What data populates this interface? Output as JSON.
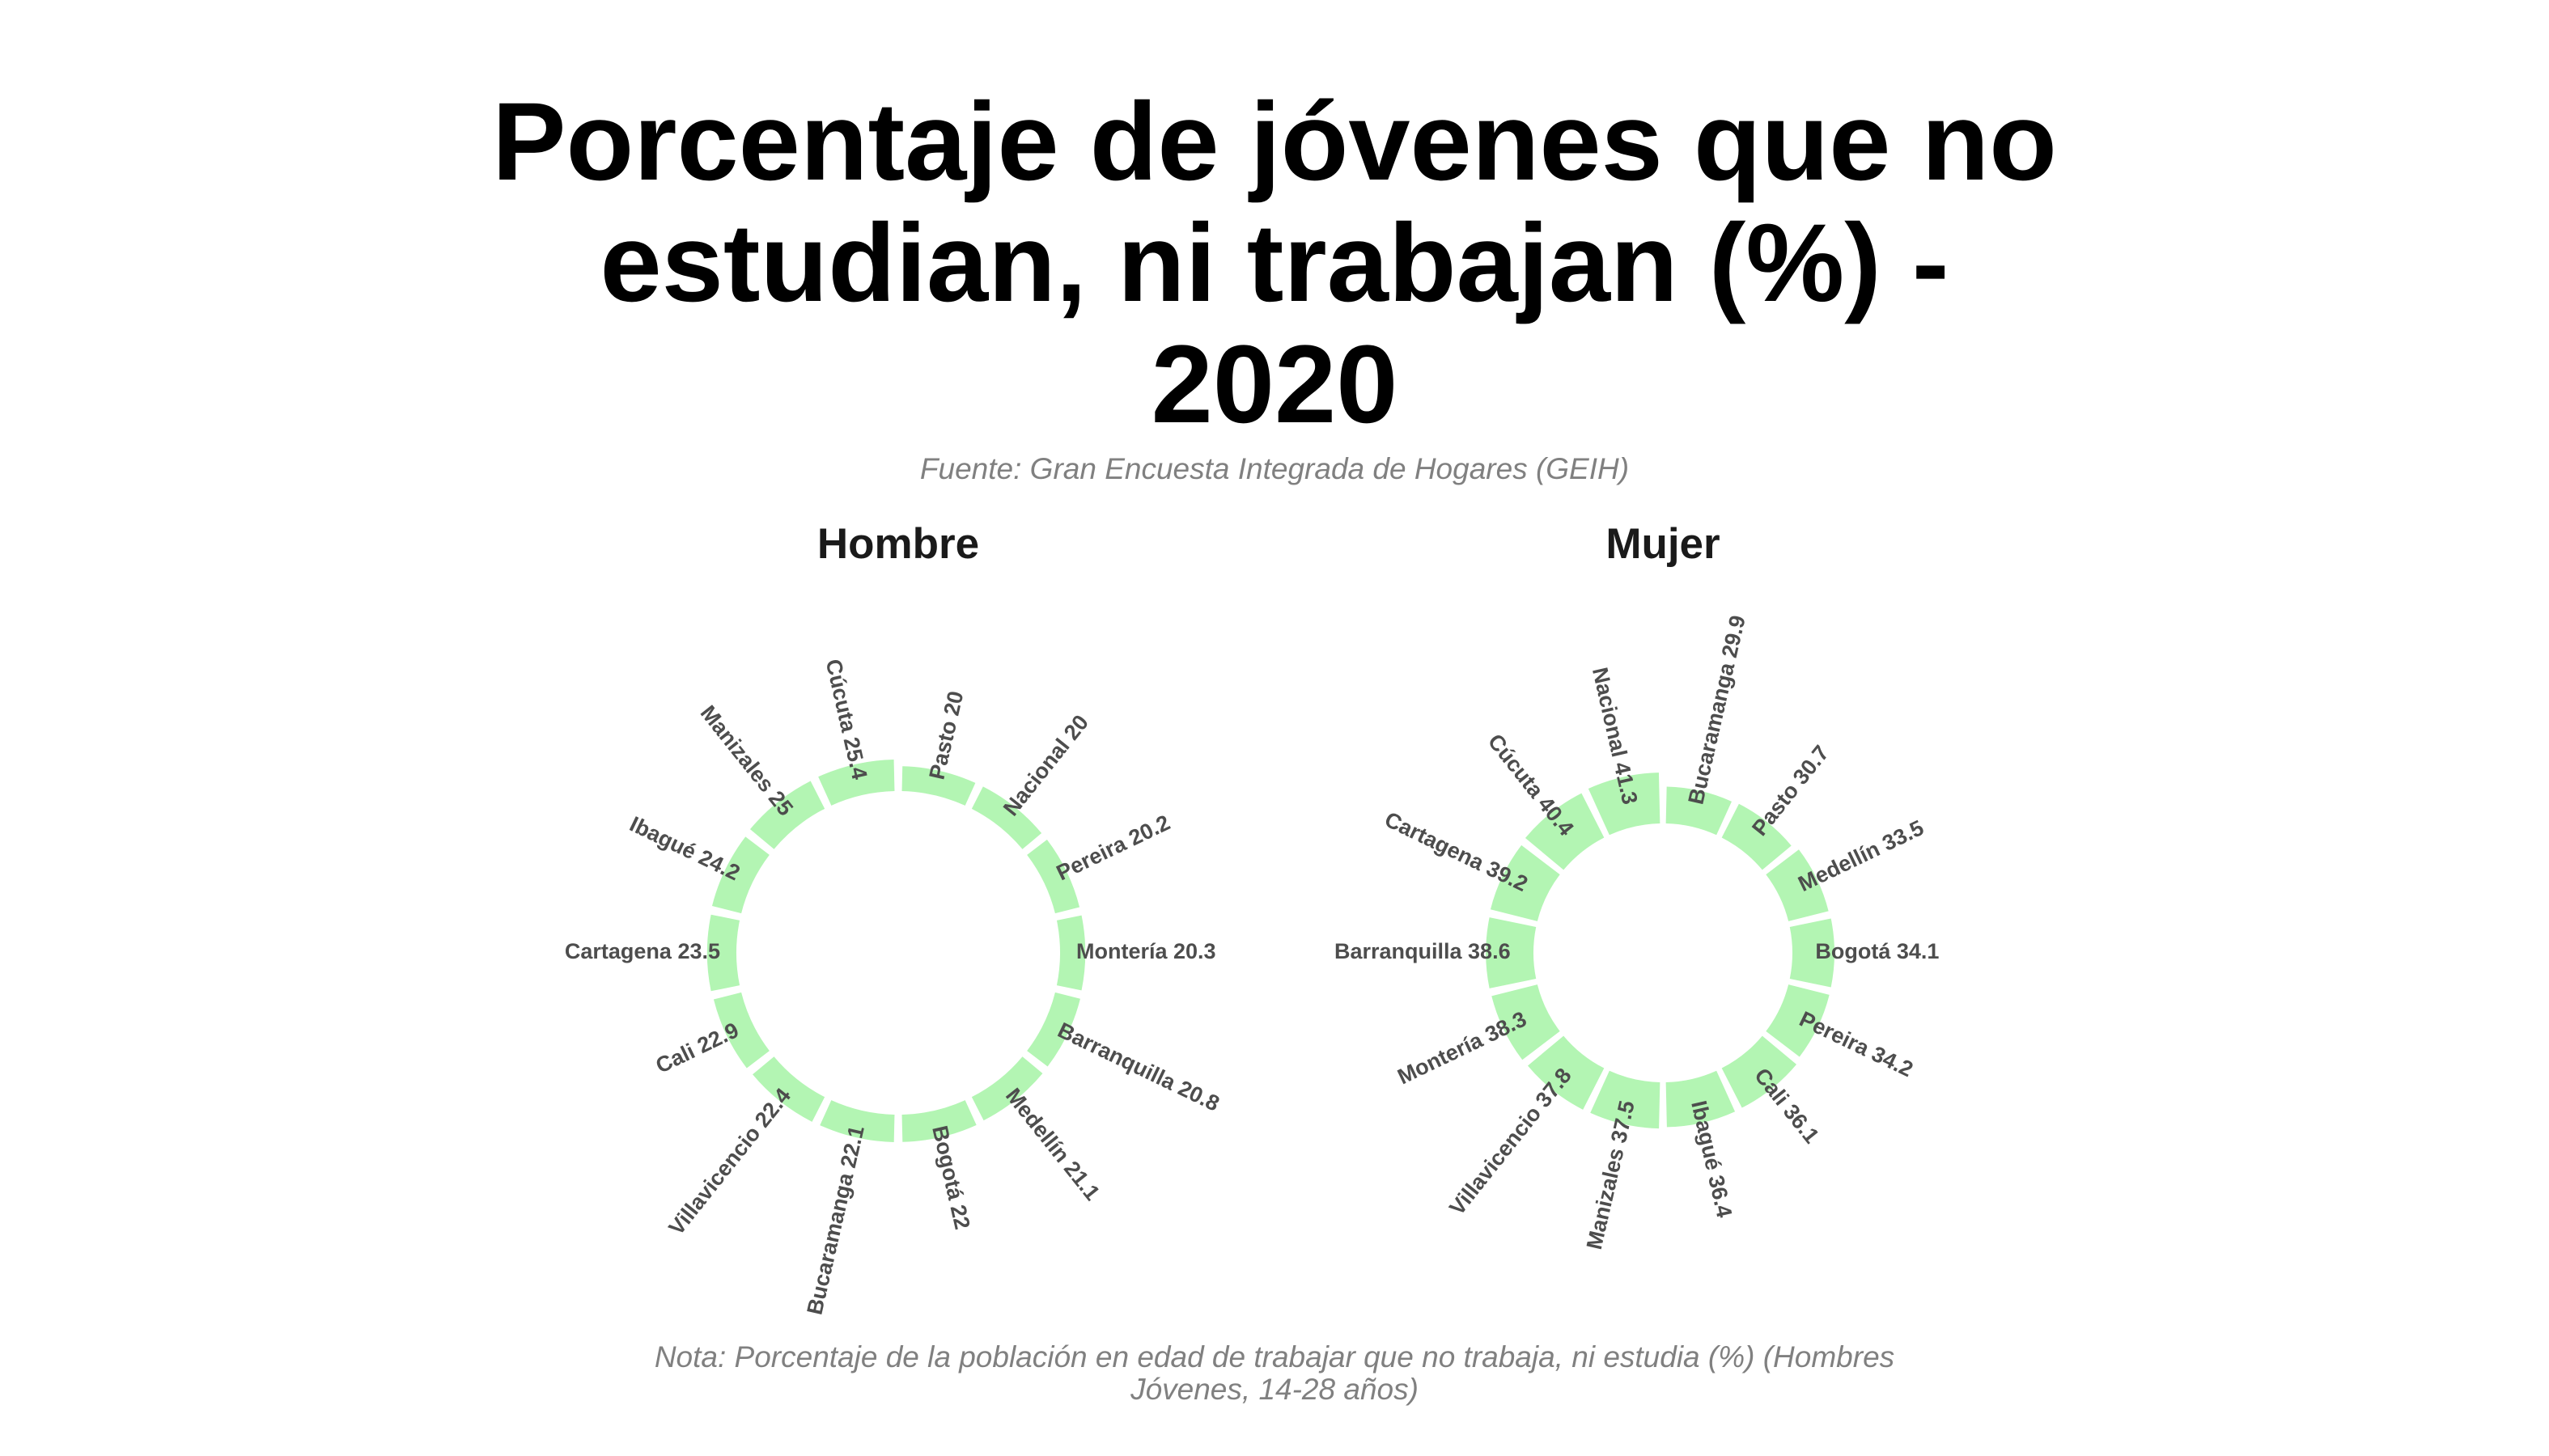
{
  "title_lines": [
    "Porcentaje de jóvenes que no",
    "estudian, ni trabajan (%) -",
    "2020"
  ],
  "subtitle": "Fuente: Gran Encuesta Integrada de Hogares (GEIH)",
  "caption_lines": [
    "Nota: Porcentaje de la población en edad de trabajar que no trabaja, ni estudia (%) (Hombres",
    "Jóvenes, 14-28 años)"
  ],
  "colors": {
    "bar_fill": "#b3f5b3",
    "label": "#4d4d4d"
  },
  "chart_data": [
    {
      "type": "circular-bar",
      "title": "Hombre",
      "categories": [
        "Pasto",
        "Nacional",
        "Pereira",
        "Montería",
        "Barranquilla",
        "Medellín",
        "Bogotá",
        "Bucaramanga",
        "Villavicencio",
        "Cali",
        "Cartagena",
        "Ibagué",
        "Manizales",
        "Cúcuta"
      ],
      "values": [
        20,
        20,
        20.2,
        20.3,
        20.8,
        21.1,
        22,
        22.1,
        22.4,
        22.9,
        23.5,
        24.2,
        25,
        25.4
      ]
    },
    {
      "type": "circular-bar",
      "title": "Mujer",
      "categories": [
        "Bucaramanga",
        "Pasto",
        "Medellín",
        "Bogotá",
        "Pereira",
        "Cali",
        "Ibagué",
        "Manizales",
        "Villavicencio",
        "Montería",
        "Barranquilla",
        "Cartagena",
        "Cúcuta",
        "Nacional"
      ],
      "values": [
        29.9,
        30.7,
        33.5,
        34.1,
        34.2,
        36.1,
        36.4,
        37.5,
        37.8,
        38.3,
        38.6,
        39.2,
        40.4,
        41.3
      ]
    }
  ]
}
